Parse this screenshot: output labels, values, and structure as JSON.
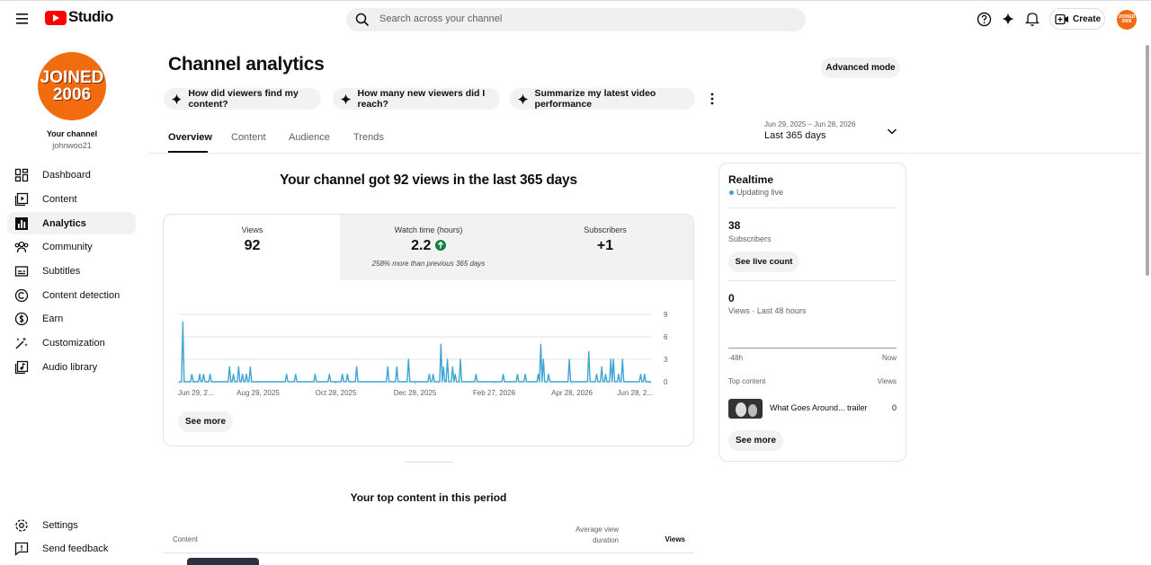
{
  "header": {
    "logo_text": "Studio",
    "search_placeholder": "Search across your channel",
    "create": "Create",
    "avatar_lines": [
      "JOINED",
      "2006"
    ]
  },
  "sidebar": {
    "avatar_lines": [
      "JOINED",
      "2006"
    ],
    "channel_label": "Your channel",
    "handle": "johnwoo21",
    "nav": [
      "Dashboard",
      "Content",
      "Analytics",
      "Community",
      "Subtitles",
      "Content detection",
      "Earn",
      "Customization",
      "Audio library"
    ],
    "footer": [
      "Settings",
      "Send feedback"
    ]
  },
  "main": {
    "title": "Channel analytics",
    "advanced_mode": "Advanced mode",
    "prompts": [
      "How did viewers find my content?",
      "How many new viewers did I reach?",
      "Summarize my latest video performance"
    ],
    "tabs": [
      "Overview",
      "Content",
      "Audience",
      "Trends"
    ],
    "date_range": {
      "dates": "Jun 29, 2025 – Jun 28, 2026",
      "label": "Last 365 days"
    },
    "headline": "Your channel got 92 views in the last 365 days",
    "metrics": [
      {
        "label": "Views",
        "value": 92
      },
      {
        "label": "Watch time (hours)",
        "value": 2.2,
        "note": "258% more than previous 365 days"
      },
      {
        "label": "Subscribers",
        "value": "+1"
      }
    ],
    "see_more": "See more",
    "realtime": {
      "title": "Realtime",
      "status": "Updating live",
      "subscribers": 38,
      "subscribers_label": "Subscribers",
      "see_live_count": "See live count",
      "views": 0,
      "views_label": "Views · Last 48 hours",
      "axis_start": "-48h",
      "axis_end": "Now",
      "top_content_label": "Top content",
      "views_column": "Views",
      "item_title": "What Goes Around... trailer",
      "item_views": 0,
      "see_more": "See more"
    },
    "top_content": {
      "title": "Your top content in this period",
      "columns": [
        "Content",
        "Average view duration",
        "Views"
      ]
    }
  },
  "chart_data": {
    "type": "line",
    "color": "#3ea6d2",
    "grid": true,
    "xlim": [
      0,
      364
    ],
    "ylim": [
      0,
      9
    ],
    "yticks": [
      0,
      3,
      6,
      9
    ],
    "xticks": [
      {
        "value": 0,
        "label": "Jun 29, 2..."
      },
      {
        "value": 61,
        "label": "Aug 29, 2025"
      },
      {
        "value": 121,
        "label": "Oct 28, 2025"
      },
      {
        "value": 182,
        "label": "Dec 28, 2025"
      },
      {
        "value": 243,
        "label": "Feb 27, 2026"
      },
      {
        "value": 303,
        "label": "Apr 28, 2026"
      },
      {
        "value": 364,
        "label": "Jun 28, 2..."
      }
    ],
    "values": [
      0,
      0,
      0,
      8,
      0,
      0,
      0,
      0,
      0,
      0,
      1,
      0,
      0,
      0,
      0,
      0,
      1,
      0,
      0,
      1,
      0,
      0,
      0,
      0,
      1,
      0,
      0,
      0,
      0,
      0,
      0,
      0,
      0,
      0,
      0,
      0,
      0,
      0,
      0,
      2,
      0,
      0,
      1,
      0,
      0,
      0,
      2,
      0,
      0,
      1,
      0,
      0,
      1,
      0,
      0,
      2,
      0,
      0,
      0,
      0,
      0,
      0,
      0,
      0,
      0,
      0,
      0,
      0,
      0,
      0,
      0,
      0,
      0,
      0,
      0,
      0,
      0,
      0,
      0,
      0,
      0,
      0,
      0,
      1,
      0,
      0,
      0,
      0,
      0,
      0,
      1,
      0,
      0,
      0,
      0,
      0,
      0,
      0,
      0,
      0,
      0,
      0,
      0,
      0,
      0,
      1,
      0,
      0,
      0,
      0,
      0,
      0,
      0,
      0,
      0,
      0,
      1,
      0,
      0,
      0,
      0,
      0,
      0,
      0,
      0,
      0,
      1,
      0,
      0,
      0,
      1,
      0,
      0,
      0,
      0,
      0,
      0,
      2,
      0,
      0,
      0,
      0,
      0,
      0,
      0,
      0,
      0,
      0,
      0,
      0,
      0,
      0,
      0,
      0,
      0,
      0,
      0,
      0,
      0,
      0,
      0,
      2,
      0,
      0,
      0,
      0,
      0,
      0,
      2,
      0,
      0,
      0,
      0,
      0,
      0,
      0,
      0,
      3,
      0,
      0,
      0,
      0,
      0,
      0,
      0,
      0,
      0,
      0,
      0,
      0,
      0,
      0,
      0,
      1,
      0,
      0,
      1,
      0,
      0,
      0,
      0,
      0,
      5,
      0,
      2,
      0,
      0,
      3,
      0,
      0,
      0,
      2,
      0,
      1,
      0,
      0,
      0,
      3,
      0,
      0,
      0,
      0,
      0,
      0,
      0,
      0,
      0,
      0,
      0,
      1,
      0,
      0,
      0,
      0,
      0,
      0,
      0,
      0,
      0,
      0,
      0,
      0,
      0,
      0,
      0,
      0,
      0,
      0,
      0,
      0,
      1,
      0,
      0,
      0,
      0,
      0,
      0,
      0,
      0,
      0,
      0,
      1,
      0,
      0,
      0,
      0,
      0,
      1,
      0,
      0,
      0,
      0,
      0,
      0,
      0,
      0,
      0,
      1,
      0,
      5,
      0,
      3,
      0,
      0,
      0,
      1,
      0,
      0,
      0,
      0,
      0,
      0,
      0,
      0,
      0,
      0,
      0,
      0,
      0,
      0,
      0,
      3,
      0,
      0,
      0,
      0,
      0,
      0,
      0,
      0,
      0,
      0,
      0,
      0,
      0,
      0,
      4,
      0,
      0,
      0,
      0,
      0,
      1,
      0,
      0,
      0,
      2,
      0,
      0,
      1,
      0,
      0,
      0,
      3,
      0,
      3,
      0,
      0,
      0,
      1,
      0,
      0,
      3,
      0,
      0,
      0,
      0,
      0,
      0,
      0,
      0,
      0,
      0,
      0,
      0,
      0,
      1,
      0,
      0,
      1,
      0,
      0,
      0,
      0,
      0
    ]
  }
}
